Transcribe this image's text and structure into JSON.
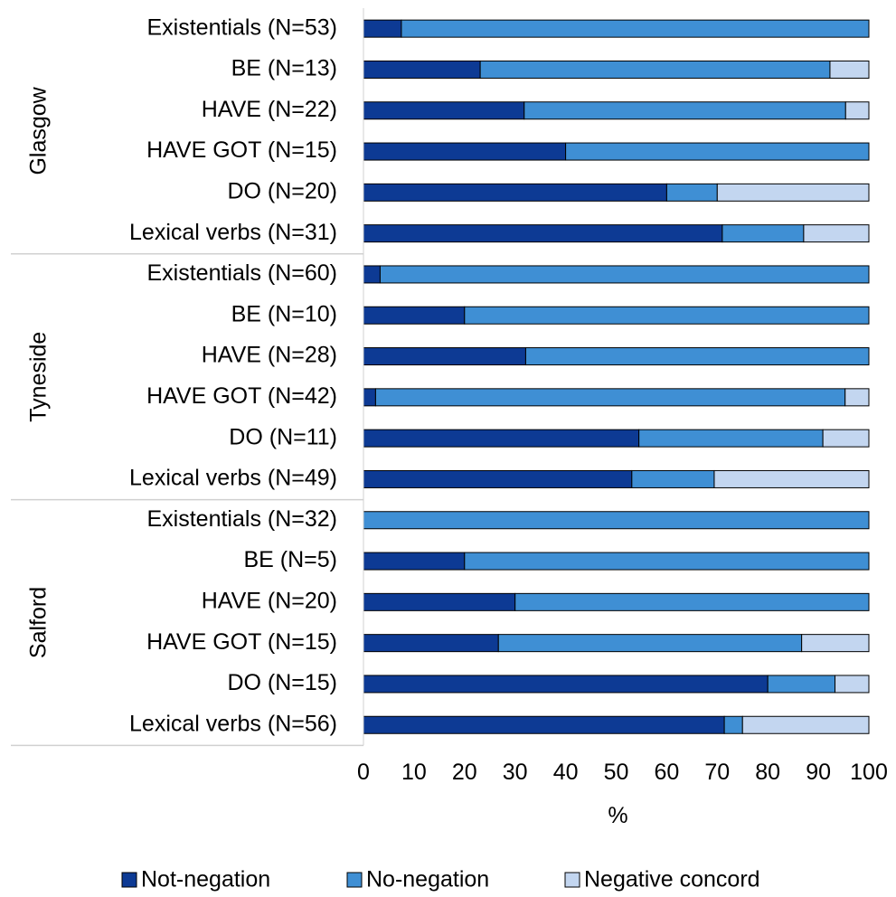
{
  "chart_data": {
    "type": "bar",
    "orientation": "horizontal",
    "stacked": true,
    "xlabel": "%",
    "xlim": [
      0,
      100
    ],
    "xticks": [
      0,
      10,
      20,
      30,
      40,
      50,
      60,
      70,
      80,
      90,
      100
    ],
    "grid": false,
    "legend_position": "bottom",
    "groups": [
      {
        "name": "Glasgow",
        "categories": [
          "Existentials (N=53)",
          "BE (N=13)",
          "HAVE (N=22)",
          "HAVE GOT (N=15)",
          "DO (N=20)",
          "Lexical verbs (N=31)"
        ],
        "series": [
          {
            "name": "Not-negation",
            "values": [
              7.5,
              23.1,
              31.8,
              40.0,
              60.0,
              71.0
            ]
          },
          {
            "name": "No-negation",
            "values": [
              92.5,
              69.2,
              63.6,
              60.0,
              10.0,
              16.1
            ]
          },
          {
            "name": "Negative concord",
            "values": [
              0,
              7.7,
              4.6,
              0,
              30.0,
              12.9
            ]
          }
        ]
      },
      {
        "name": "Tyneside",
        "categories": [
          "Existentials (N=60)",
          "BE (N=10)",
          "HAVE (N=28)",
          "HAVE GOT (N=42)",
          "DO (N=11)",
          "Lexical verbs (N=49)"
        ],
        "series": [
          {
            "name": "Not-negation",
            "values": [
              3.3,
              20.0,
              32.1,
              2.4,
              54.5,
              53.1
            ]
          },
          {
            "name": "No-negation",
            "values": [
              96.7,
              80.0,
              67.9,
              92.9,
              36.4,
              16.3
            ]
          },
          {
            "name": "Negative concord",
            "values": [
              0,
              0,
              0,
              4.7,
              9.1,
              30.6
            ]
          }
        ]
      },
      {
        "name": "Salford",
        "categories": [
          "Existentials (N=32)",
          "BE (N=5)",
          "HAVE (N=20)",
          "HAVE GOT (N=15)",
          "DO (N=15)",
          "Lexical verbs (N=56)"
        ],
        "series": [
          {
            "name": "Not-negation",
            "values": [
              0,
              20.0,
              30.0,
              26.7,
              80.0,
              71.4
            ]
          },
          {
            "name": "No-negation",
            "values": [
              100,
              80.0,
              70.0,
              60.0,
              13.3,
              3.6
            ]
          },
          {
            "name": "Negative concord",
            "values": [
              0,
              0,
              0,
              13.3,
              6.7,
              25.0
            ]
          }
        ]
      }
    ],
    "colors": {
      "Not-negation": "#0d3a94",
      "No-negation": "#3f8fd4",
      "Negative concord": "#c3d6f0"
    },
    "legend": [
      "Not-negation",
      "No-negation",
      "Negative concord"
    ]
  }
}
